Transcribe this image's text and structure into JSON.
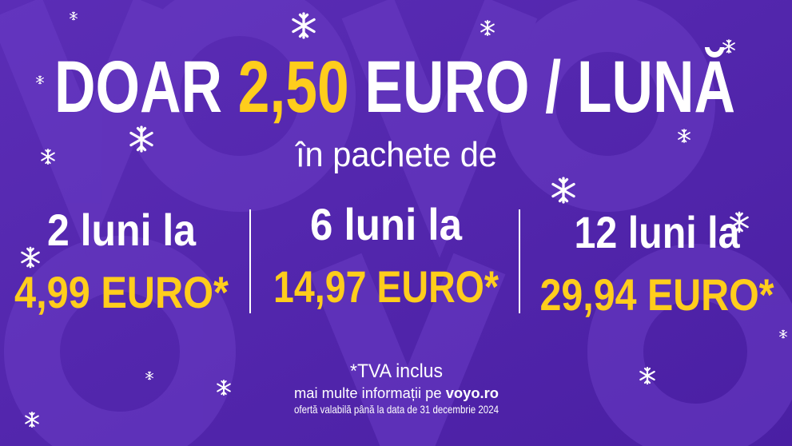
{
  "headline": {
    "lead": "DOAR",
    "price": "2,50",
    "rest": "EURO / LUNĂ"
  },
  "subtitle": "în pachete de",
  "offers": [
    {
      "period": "2 luni la",
      "price": "4,99 EURO*"
    },
    {
      "period": "6 luni la",
      "price": "14,97 EURO*"
    },
    {
      "period": "12 luni la",
      "price": "29,94 EURO*"
    }
  ],
  "footer": {
    "vat": "*TVA inclus",
    "info": "mai multe informații pe",
    "site": "voyo.ro",
    "validity": "ofertă valabilă până la data de 31 decembrie 2024"
  }
}
